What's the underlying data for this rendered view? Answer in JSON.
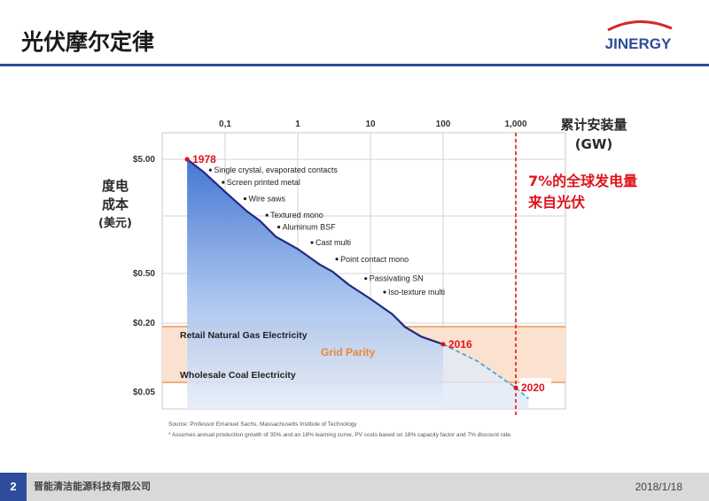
{
  "slide": {
    "title": "光伏摩尔定律",
    "logo_text": "JINERGY",
    "page_number": "2",
    "company": "晋能清洁能源科技有限公司",
    "date": "2018/1/18"
  },
  "colors": {
    "brand_blue": "#2e4c99",
    "logo_red": "#d02a2a",
    "curve": "#1f2a80",
    "band_fill": "#fbe1cf",
    "band_line": "#e8873c",
    "highlight_red": "#e0141e",
    "grid_parity_text": "#e8873c"
  },
  "labels": {
    "ylabel_line1": "度电",
    "ylabel_line2": "成本",
    "ylabel_unit": "(美元)",
    "xlabel_line1": "累计安装量",
    "xlabel_unit": "(GW)",
    "callout_line1": "7%的全球发电量",
    "callout_line2": "来自光伏"
  },
  "chart_data": {
    "type": "line",
    "x_scale": "log",
    "y_scale": "log",
    "x_ticks": [
      "0,1",
      "1",
      "10",
      "100",
      "1,000"
    ],
    "y_ticks": [
      "$5.00",
      "$0.50",
      "$0.20",
      "$0.05"
    ],
    "series": [
      {
        "style": "solid",
        "x": [
          0.03,
          0.05,
          0.1,
          0.2,
          0.3,
          0.5,
          1,
          2,
          3,
          5,
          10,
          20,
          30,
          50,
          100
        ],
        "y": [
          5.0,
          3.9,
          2.6,
          1.75,
          1.45,
          1.05,
          0.82,
          0.6,
          0.52,
          0.4,
          0.3,
          0.22,
          0.17,
          0.14,
          0.12
        ]
      },
      {
        "style": "dashed",
        "x": [
          100,
          300,
          1000,
          1500
        ],
        "y": [
          0.12,
          0.085,
          0.05,
          0.04
        ]
      }
    ],
    "milestones": [
      {
        "label": "1978",
        "x": 0.03,
        "y": 5.0
      },
      {
        "label": "2016",
        "x": 100,
        "y": 0.12
      },
      {
        "label": "2020",
        "x": 1000,
        "y": 0.05
      }
    ],
    "annotations": [
      {
        "text": "Single crystal, evaporated contacts",
        "x": 0.04,
        "y": 4.1
      },
      {
        "text": "Screen printed metal",
        "x": 0.06,
        "y": 3.2
      },
      {
        "text": "Wire saws",
        "x": 0.12,
        "y": 2.3
      },
      {
        "text": "Textured mono",
        "x": 0.24,
        "y": 1.65
      },
      {
        "text": "Aluminum BSF",
        "x": 0.35,
        "y": 1.3
      },
      {
        "text": "Cast multi",
        "x": 1.0,
        "y": 0.95
      },
      {
        "text": "Point contact mono",
        "x": 2.2,
        "y": 0.68
      },
      {
        "text": "Passivating SN",
        "x": 5.5,
        "y": 0.46
      },
      {
        "text": "Iso-texture multi",
        "x": 10,
        "y": 0.35
      }
    ],
    "bands": [
      {
        "label": "Retail Natural Gas Electricity",
        "x_from": 0.03,
        "x_to": 10000
      },
      {
        "label": "Wholesale Coal Electricity",
        "x_from": 0.03,
        "x_to": 10000
      }
    ],
    "band_center_label": "Grid Parity",
    "vertical_marker_x": 1000,
    "notes": [
      "Source: Professor Emanuel Sachs, Massachusetts Institute of Technology",
      "* Assumes annual production growth of 35% and an 18% learning curve. PV costs based on 18% capacity factor and 7% discount rate."
    ]
  }
}
